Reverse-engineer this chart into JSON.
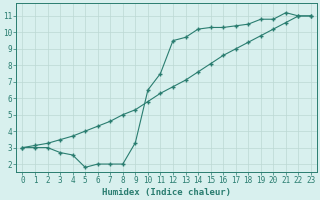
{
  "line1_x": [
    0,
    1,
    2,
    3,
    4,
    5,
    6,
    7,
    8,
    9,
    10,
    11,
    12,
    13,
    14,
    15,
    16,
    17,
    18,
    19,
    20,
    21,
    22,
    23
  ],
  "line1_y": [
    3.0,
    3.0,
    3.0,
    2.7,
    2.55,
    1.8,
    2.0,
    2.0,
    2.0,
    3.3,
    6.5,
    7.5,
    9.5,
    9.7,
    10.2,
    10.3,
    10.3,
    10.4,
    10.5,
    10.8,
    10.8,
    11.2,
    11.0,
    11.0
  ],
  "line2_x": [
    0,
    1,
    2,
    3,
    4,
    5,
    6,
    7,
    8,
    9,
    10,
    11,
    12,
    13,
    14,
    15,
    16,
    17,
    18,
    19,
    20,
    21,
    22,
    23
  ],
  "line2_y": [
    3.0,
    3.13,
    3.26,
    3.48,
    3.7,
    4.0,
    4.3,
    4.6,
    5.0,
    5.3,
    5.8,
    6.3,
    6.7,
    7.1,
    7.6,
    8.1,
    8.6,
    9.0,
    9.4,
    9.8,
    10.2,
    10.6,
    11.0,
    11.0
  ],
  "line_color": "#2a7d70",
  "marker": "+",
  "markersize": 3.5,
  "linewidth": 0.8,
  "bg_color": "#d8f0ee",
  "grid_color": "#bcd8d4",
  "xlabel": "Humidex (Indice chaleur)",
  "xlabel_fontsize": 6.5,
  "xtick_labels": [
    "0",
    "1",
    "2",
    "3",
    "4",
    "5",
    "6",
    "7",
    "8",
    "9",
    "10",
    "11",
    "12",
    "13",
    "14",
    "15",
    "16",
    "17",
    "18",
    "19",
    "20",
    "21",
    "22",
    "23"
  ],
  "ytick_labels": [
    "2",
    "3",
    "4",
    "5",
    "6",
    "7",
    "8",
    "9",
    "10",
    "11"
  ],
  "xlim": [
    -0.5,
    23.5
  ],
  "ylim": [
    1.5,
    11.8
  ],
  "tick_fontsize": 5.5,
  "axis_color": "#2a7d70"
}
